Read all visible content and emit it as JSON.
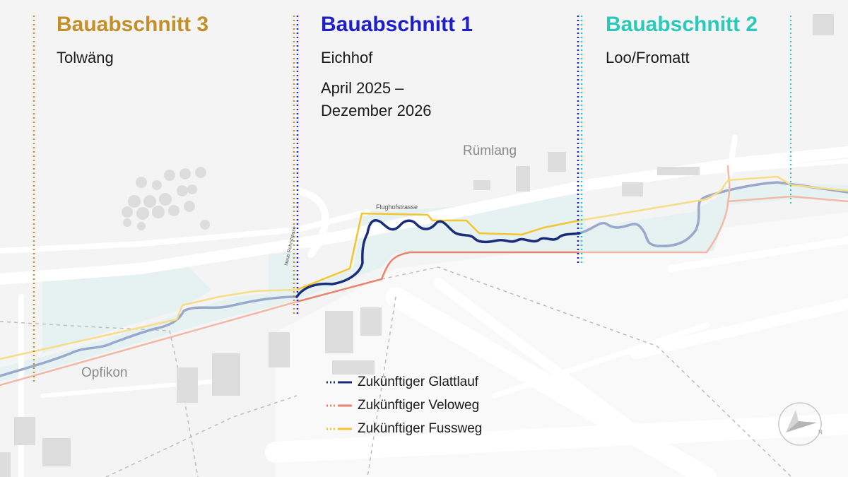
{
  "sections": [
    {
      "title": "Bauabschnitt 3",
      "subtitle": "Tolwäng",
      "color": "#c1902a"
    },
    {
      "title": "Bauabschnitt 1",
      "subtitle": "Eichhof",
      "dates": [
        "April 2025 –",
        "Dezember 2026"
      ],
      "color": "#1f1fc8"
    },
    {
      "title": "Bauabschnitt 2",
      "subtitle": "Loo/Fromatt",
      "color": "#2cc9b9"
    }
  ],
  "places": {
    "ruemlang": "Rümlang",
    "opfikon": "Opfikon",
    "flughofstrasse": "Flughofstrasse",
    "rohrstrasse": "Neue Rohrstrasse"
  },
  "legend": [
    {
      "label": "Zukünftiger Glattlauf",
      "color": "#1a2d7a"
    },
    {
      "label": "Zukünftiger Veloweg",
      "color": "#e8836c"
    },
    {
      "label": "Zukünftiger Fussweg",
      "color": "#f2c531"
    }
  ],
  "colors": {
    "background": "#f4f4f4",
    "water": "#e6f2f1",
    "roads": "#ffffff",
    "buildings": "#dddddd",
    "river_future": "#1a2d7a",
    "river_existing": "#9aa8cc"
  },
  "icons": [
    "compass-icon"
  ]
}
